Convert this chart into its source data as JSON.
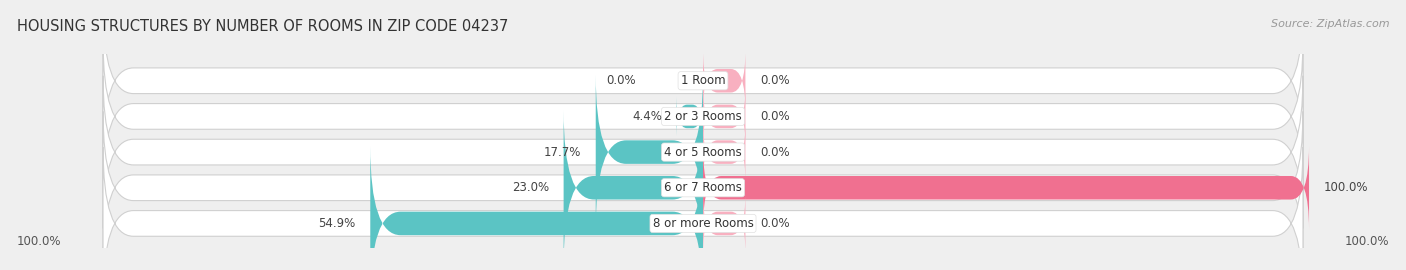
{
  "title": "HOUSING STRUCTURES BY NUMBER OF ROOMS IN ZIP CODE 04237",
  "source": "Source: ZipAtlas.com",
  "categories": [
    "1 Room",
    "2 or 3 Rooms",
    "4 or 5 Rooms",
    "6 or 7 Rooms",
    "8 or more Rooms"
  ],
  "owner_pct": [
    0.0,
    4.4,
    17.7,
    23.0,
    54.9
  ],
  "renter_pct": [
    0.0,
    0.0,
    0.0,
    100.0,
    0.0
  ],
  "renter_small_pct": [
    0.0,
    0.0,
    0.0,
    0.0,
    0.0
  ],
  "owner_color": "#5bc4c4",
  "renter_color": "#f07090",
  "renter_light_color": "#f8b0c0",
  "bg_color": "#efefef",
  "title_fontsize": 10.5,
  "label_fontsize": 8.5,
  "source_fontsize": 8,
  "legend_fontsize": 9
}
